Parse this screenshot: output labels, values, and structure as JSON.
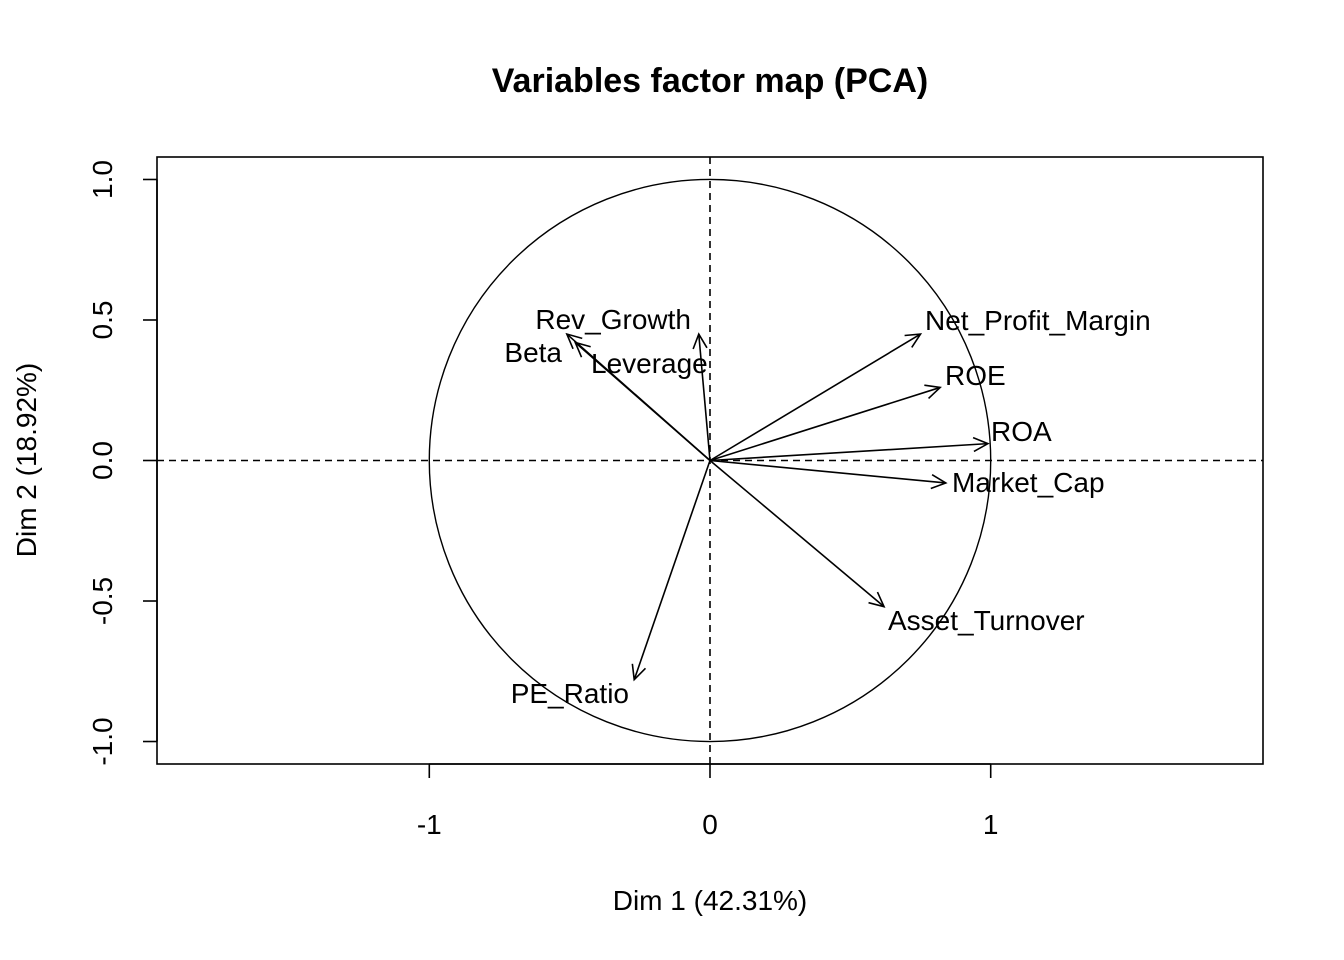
{
  "chart_data": {
    "type": "scatter",
    "subtype": "pca-variables-correlation-circle",
    "title": "Variables factor map (PCA)",
    "xlabel": "Dim 1 (42.31%)",
    "ylabel": "Dim 2 (18.92%)",
    "xlim": [
      -1.97,
      1.97
    ],
    "ylim": [
      -1.08,
      1.08
    ],
    "xticks": [
      -1,
      0,
      1
    ],
    "xtick_labels": [
      "-1",
      "0",
      "1"
    ],
    "yticks": [
      -1.0,
      -0.5,
      0.0,
      0.5,
      1.0
    ],
    "ytick_labels": [
      "-1.0",
      "-0.5",
      "0.0",
      "0.5",
      "1.0"
    ],
    "grid": false,
    "reference_lines": "dashed lines at x = 0 and y = 0",
    "unit_circle": true,
    "arrow_color": "#000000",
    "variables": [
      {
        "name": "Rev_Growth",
        "x": -0.04,
        "y": 0.45
      },
      {
        "name": "Beta",
        "x": -0.51,
        "y": 0.45
      },
      {
        "name": "Leverage",
        "x": -0.48,
        "y": 0.42
      },
      {
        "name": "Net_Profit_Margin",
        "x": 0.75,
        "y": 0.45
      },
      {
        "name": "ROE",
        "x": 0.82,
        "y": 0.26
      },
      {
        "name": "ROA",
        "x": 0.99,
        "y": 0.06
      },
      {
        "name": "Market_Cap",
        "x": 0.84,
        "y": -0.08
      },
      {
        "name": "Asset_Turnover",
        "x": 0.62,
        "y": -0.52
      },
      {
        "name": "PE_Ratio",
        "x": -0.27,
        "y": -0.78
      }
    ]
  }
}
